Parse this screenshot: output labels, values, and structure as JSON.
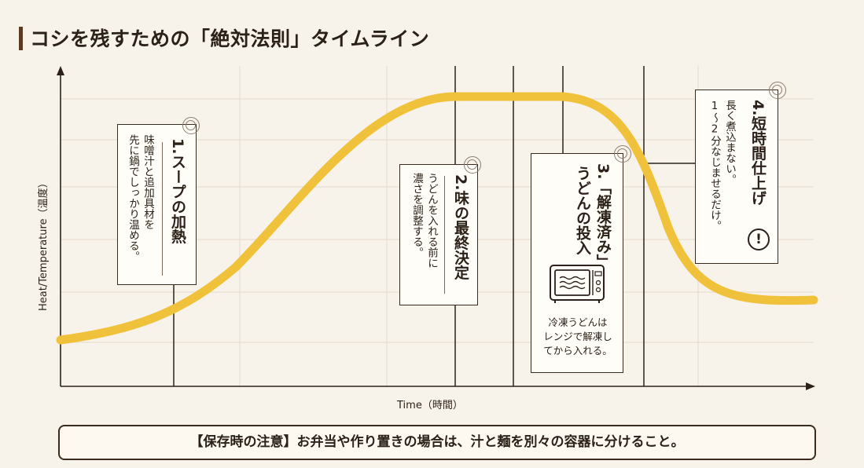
{
  "title": "コシを残すための「絶対法則」タイムライン",
  "axes": {
    "y_label": "Heat/Temperature（温度）",
    "x_label": "Time（時間）"
  },
  "curve_color": "#f0c13a",
  "steps": [
    {
      "number": "1.",
      "heading": "スープの加熱",
      "body_lines": [
        "味噌汁と追加具材を",
        "先に鍋でしっかり温める。"
      ]
    },
    {
      "number": "2.",
      "heading": "味の最終決定",
      "body_lines": [
        "うどんを入れる前に",
        "濃さを調整する。"
      ]
    },
    {
      "number": "3.",
      "heading_lines": [
        "「解凍済み」",
        "うどんの投入"
      ],
      "icon": "microwave-icon",
      "caption_lines": [
        "冷凍うどんは",
        "レンジで解凍し",
        "てから入れる。"
      ]
    },
    {
      "number": "4.",
      "heading": "短時間仕上げ",
      "body_lines": [
        "長く煮込まない。",
        "1〜2分なじませるだけ。"
      ],
      "icon": "exclamation-icon",
      "icon_text": "!"
    }
  ],
  "note": "【保存時の注意】お弁当や作り置きの場合は、汁と麺を別々の容器に分けること。"
}
